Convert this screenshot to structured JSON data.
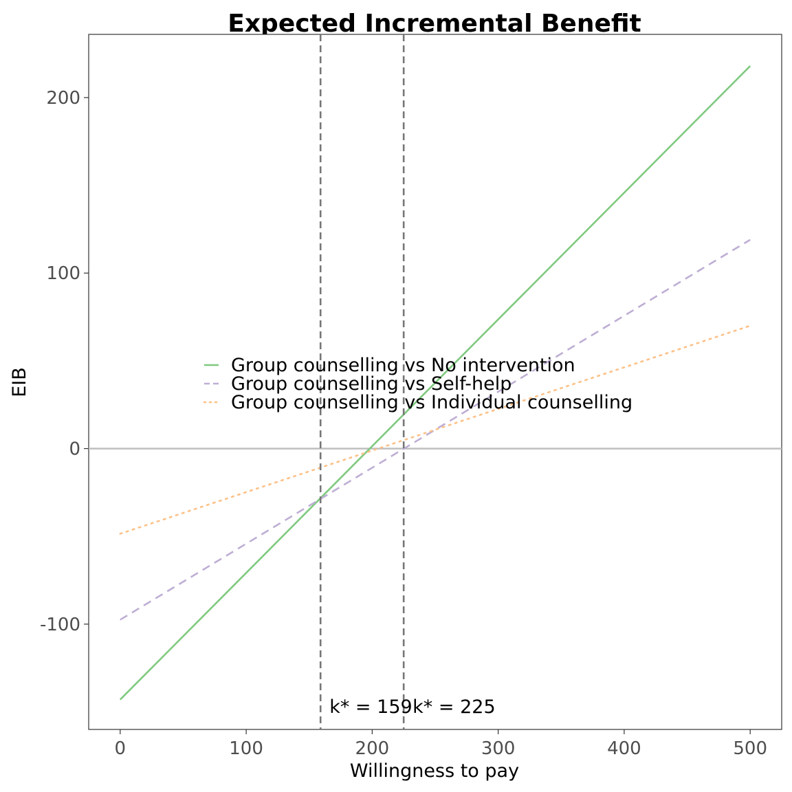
{
  "chart_data": {
    "type": "line",
    "title": "Expected Incremental Benefit",
    "xlabel": "Willingness to pay",
    "ylabel": "EIB",
    "xlim": [
      -25,
      525
    ],
    "ylim": [
      -160,
      236
    ],
    "xticks": [
      0,
      100,
      200,
      300,
      400,
      500
    ],
    "yticks": [
      -100,
      0,
      100,
      200
    ],
    "x_tick_labels": [
      "0",
      "100",
      "200",
      "300",
      "400",
      "500"
    ],
    "y_tick_labels": [
      "-100",
      "0",
      "100",
      "200"
    ],
    "grid": false,
    "legend_position": "center-left, inside plot",
    "hline": 0,
    "series": [
      {
        "name": "Group counselling vs No intervention",
        "color": "#7fc97f",
        "dash": "solid",
        "x": [
          0,
          500
        ],
        "y": [
          -143,
          218
        ]
      },
      {
        "name": "Group counselling vs Self-help",
        "color": "#beaed4",
        "dash": "dashed",
        "x": [
          0,
          500
        ],
        "y": [
          -97.5,
          119
        ]
      },
      {
        "name": "Group counselling vs Individual counselling",
        "color": "#fdc086",
        "dash": "dotted",
        "x": [
          0,
          500
        ],
        "y": [
          -48.5,
          70
        ]
      }
    ],
    "vlines": [
      {
        "x": 159,
        "label": "k* = 159"
      },
      {
        "x": 225,
        "label": "k* = 225"
      }
    ],
    "annotation_y": -147
  }
}
